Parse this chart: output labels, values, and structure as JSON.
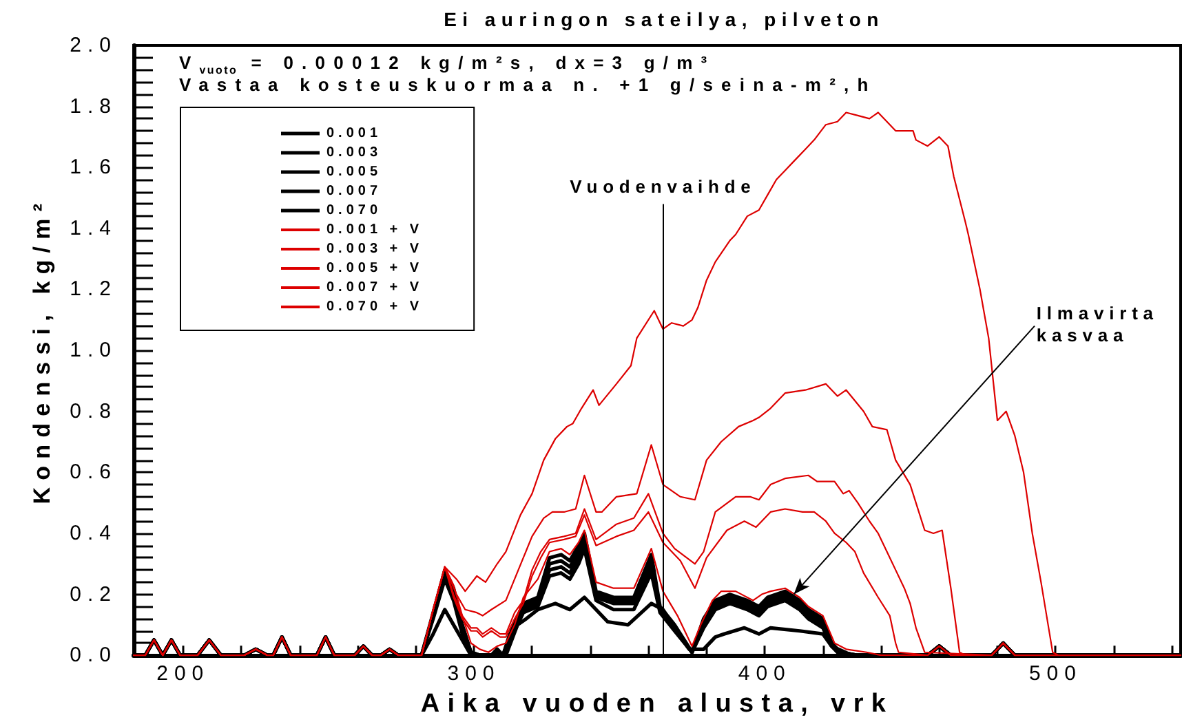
{
  "chart_data": {
    "type": "line",
    "title": "Ei auringon sateilya, pilveton",
    "xlabel": "Aika vuoden alusta, vrk",
    "ylabel": "Kondenssi, kg/m²",
    "annotations": [
      "V$_{vuoto}$ = 0.00012 kg/m²s, dx=3 g/m³",
      "Vastaa kosteuskuormaa n. +1 g/seina-m²,h",
      {
        "text": "Ilmavirta kasvaa",
        "x": 410,
        "y": 0.2
      }
    ],
    "ref_lines": [
      {
        "axis": "x",
        "value": 365,
        "label": "Vuodenvaihde"
      }
    ],
    "xlim": [
      183,
      543
    ],
    "ylim": [
      0,
      2
    ],
    "xticks": [
      200,
      {
        "value": 220,
        "label": null
      },
      {
        "value": 240,
        "label": null
      },
      {
        "value": 260,
        "label": null
      },
      {
        "value": 280,
        "label": null
      },
      300,
      {
        "value": 320,
        "label": null
      },
      {
        "value": 340,
        "label": null
      },
      {
        "value": 360,
        "label": null
      },
      {
        "value": 380,
        "label": null
      },
      400,
      {
        "value": 420,
        "label": null
      },
      {
        "value": 440,
        "label": null
      },
      {
        "value": 460,
        "label": null
      },
      {
        "value": 480,
        "label": null
      },
      500,
      {
        "value": 520,
        "label": null
      },
      {
        "value": 540,
        "label": null
      }
    ],
    "yticks": [
      {
        "value": 0,
        "label": "0.0"
      },
      {
        "value": 0.04,
        "label": null
      },
      {
        "value": 0.08,
        "label": null
      },
      {
        "value": 0.12,
        "label": null
      },
      {
        "value": 0.16,
        "label": null
      },
      0.2,
      {
        "value": 0.24,
        "label": null
      },
      {
        "value": 0.28,
        "label": null
      },
      {
        "value": 0.32,
        "label": null
      },
      {
        "value": 0.36,
        "label": null
      },
      0.4,
      {
        "value": 0.44,
        "label": null
      },
      {
        "value": 0.48,
        "label": null
      },
      {
        "value": 0.52,
        "label": null
      },
      {
        "value": 0.56,
        "label": null
      },
      0.6,
      {
        "value": 0.64,
        "label": null
      },
      {
        "value": 0.68,
        "label": null
      },
      {
        "value": 0.72,
        "label": null
      },
      {
        "value": 0.76,
        "label": null
      },
      0.8,
      {
        "value": 0.84,
        "label": null
      },
      {
        "value": 0.88,
        "label": null
      },
      {
        "value": 0.92,
        "label": null
      },
      {
        "value": 0.96,
        "label": null
      },
      {
        "value": 1,
        "label": "1.0"
      },
      {
        "value": 1.04,
        "label": null
      },
      {
        "value": 1.08,
        "label": null
      },
      {
        "value": 1.12,
        "label": null
      },
      {
        "value": 1.16,
        "label": null
      },
      1.2,
      {
        "value": 1.24,
        "label": null
      },
      {
        "value": 1.28,
        "label": null
      },
      {
        "value": 1.32,
        "label": null
      },
      {
        "value": 1.36,
        "label": null
      },
      1.4,
      {
        "value": 1.44,
        "label": null
      },
      {
        "value": 1.48,
        "label": null
      },
      {
        "value": 1.52,
        "label": null
      },
      {
        "value": 1.56,
        "label": null
      },
      1.6,
      {
        "value": 1.64,
        "label": null
      },
      {
        "value": 1.68,
        "label": null
      },
      {
        "value": 1.72,
        "label": null
      },
      {
        "value": 1.76,
        "label": null
      },
      1.8,
      {
        "value": 1.84,
        "label": null
      },
      {
        "value": 1.88,
        "label": null
      },
      {
        "value": 1.92,
        "label": null
      },
      {
        "value": 1.96,
        "label": null
      },
      {
        "value": 2,
        "label": "2.0"
      }
    ],
    "legend": "top left",
    "marker": "none",
    "line_style": "solid",
    "x": [
      183,
      187,
      190,
      193,
      196,
      199,
      205,
      209,
      213,
      221,
      225,
      229,
      231,
      234,
      237,
      246,
      249,
      252,
      259,
      262,
      265,
      268,
      271,
      274,
      282,
      286,
      290,
      293,
      296,
      299,
      302,
      306,
      308,
      310,
      312,
      317,
      322,
      326,
      330,
      333,
      336,
      338,
      342,
      348,
      355,
      361,
      364,
      369,
      375,
      379,
      383,
      388,
      394,
      398,
      401,
      407,
      412,
      415,
      420,
      423,
      426,
      432,
      456,
      460,
      464,
      478,
      482,
      486,
      543
    ],
    "series": [
      {
        "name": "0.001",
        "color": "#000000",
        "values": [
          0,
          0,
          0.05,
          0,
          0.05,
          0,
          0,
          0.05,
          0,
          0,
          0.02,
          0,
          0,
          0.06,
          0,
          0,
          0.06,
          0,
          0,
          0.03,
          0,
          0,
          0.02,
          0,
          0,
          0.14,
          0.28,
          0.22,
          0.1,
          0.01,
          0,
          0,
          0.02,
          0,
          0.06,
          0.17,
          0.19,
          0.32,
          0.33,
          0.31,
          0.36,
          0.4,
          0.21,
          0.19,
          0.19,
          0.33,
          0.16,
          0.1,
          0.01,
          0.12,
          0.18,
          0.2,
          0.18,
          0.16,
          0.19,
          0.21,
          0.18,
          0.15,
          0.12,
          0.04,
          0.01,
          0,
          0,
          0.03,
          0,
          0,
          0.04,
          0,
          0
        ]
      },
      {
        "name": "0.003",
        "color": "#000000",
        "values": [
          0,
          0,
          0.05,
          0,
          0.05,
          0,
          0,
          0.05,
          0,
          0,
          0.02,
          0,
          0,
          0.06,
          0,
          0,
          0.06,
          0,
          0,
          0.03,
          0,
          0,
          0.02,
          0,
          0,
          0.13,
          0.27,
          0.2,
          0.09,
          0.01,
          0,
          0,
          0.02,
          0,
          0.05,
          0.16,
          0.18,
          0.3,
          0.31,
          0.29,
          0.34,
          0.38,
          0.2,
          0.18,
          0.18,
          0.31,
          0.15,
          0.09,
          0.01,
          0.11,
          0.17,
          0.19,
          0.17,
          0.15,
          0.18,
          0.2,
          0.17,
          0.14,
          0.11,
          0.04,
          0.01,
          0,
          0,
          0.03,
          0,
          0,
          0.04,
          0,
          0
        ]
      },
      {
        "name": "0.005",
        "color": "#000000",
        "values": [
          0,
          0,
          0.05,
          0,
          0.05,
          0,
          0,
          0.05,
          0,
          0,
          0.02,
          0,
          0,
          0.06,
          0,
          0,
          0.06,
          0,
          0,
          0.03,
          0,
          0,
          0.02,
          0,
          0,
          0.13,
          0.26,
          0.19,
          0.08,
          0.01,
          0,
          0,
          0.01,
          0,
          0.05,
          0.15,
          0.17,
          0.28,
          0.29,
          0.27,
          0.32,
          0.37,
          0.19,
          0.17,
          0.17,
          0.29,
          0.15,
          0.09,
          0.01,
          0.1,
          0.16,
          0.18,
          0.16,
          0.14,
          0.17,
          0.19,
          0.16,
          0.13,
          0.1,
          0.03,
          0.01,
          0,
          0,
          0.03,
          0,
          0,
          0.04,
          0,
          0
        ]
      },
      {
        "name": "0.007",
        "color": "#000000",
        "values": [
          0,
          0,
          0.05,
          0,
          0.05,
          0,
          0,
          0.05,
          0,
          0,
          0.02,
          0,
          0,
          0.06,
          0,
          0,
          0.06,
          0,
          0,
          0.03,
          0,
          0,
          0.02,
          0,
          0,
          0.12,
          0.25,
          0.18,
          0.07,
          0.01,
          0,
          0,
          0.01,
          0,
          0.04,
          0.14,
          0.16,
          0.26,
          0.27,
          0.25,
          0.3,
          0.35,
          0.18,
          0.15,
          0.15,
          0.27,
          0.14,
          0.08,
          0.01,
          0.09,
          0.15,
          0.17,
          0.15,
          0.13,
          0.16,
          0.18,
          0.15,
          0.12,
          0.09,
          0.03,
          0,
          0,
          0,
          0.03,
          0,
          0,
          0.04,
          0,
          0
        ]
      },
      {
        "name": "0.070",
        "color": "#000000",
        "x": [
          183,
          187,
          190,
          193,
          196,
          199,
          205,
          209,
          213,
          221,
          225,
          229,
          231,
          234,
          237,
          246,
          249,
          252,
          259,
          262,
          265,
          268,
          271,
          274,
          282,
          286,
          290,
          293,
          296,
          299,
          306,
          311,
          315,
          318,
          322,
          328,
          333,
          338,
          342,
          346,
          353,
          361,
          365,
          369,
          374,
          379,
          383,
          386,
          393,
          398,
          402,
          412,
          420,
          423,
          430,
          456,
          460,
          464,
          478,
          482,
          486,
          543
        ],
        "values": [
          0,
          0,
          0.05,
          0,
          0.05,
          0,
          0,
          0.05,
          0,
          0,
          0.02,
          0,
          0,
          0.06,
          0,
          0,
          0.06,
          0,
          0,
          0.03,
          0,
          0,
          0.02,
          0,
          0,
          0.07,
          0.15,
          0.1,
          0.05,
          0,
          0,
          0,
          0.1,
          0.12,
          0.15,
          0.17,
          0.15,
          0.19,
          0.15,
          0.11,
          0.1,
          0.17,
          0.15,
          0.09,
          0.02,
          0.02,
          0.06,
          0.07,
          0.09,
          0.07,
          0.09,
          0.08,
          0.07,
          0.03,
          0,
          0,
          0.03,
          0,
          0,
          0.04,
          0,
          0
        ]
      },
      {
        "name": "0.001 + V",
        "color": "#dd0000",
        "x": [
          183,
          187,
          190,
          193,
          196,
          199,
          205,
          209,
          213,
          221,
          225,
          229,
          231,
          234,
          237,
          246,
          249,
          252,
          259,
          262,
          265,
          268,
          271,
          274,
          282,
          286,
          290,
          294,
          297,
          301,
          304,
          308,
          311,
          316,
          320,
          324,
          328,
          332,
          334,
          337,
          341,
          343,
          349,
          354,
          356,
          362,
          365,
          368,
          372,
          375,
          377,
          380,
          383,
          388,
          390,
          394,
          398,
          401,
          404,
          407,
          410,
          414,
          417,
          421,
          425,
          428,
          432,
          436,
          439,
          445,
          448,
          451,
          452,
          456,
          460,
          463,
          465,
          469,
          470,
          474,
          477,
          480,
          483,
          486,
          489,
          492,
          495,
          499,
          501,
          543
        ],
        "values": [
          0,
          0,
          0.05,
          0,
          0.05,
          0,
          0,
          0.05,
          0,
          0,
          0.02,
          0,
          0,
          0.06,
          0,
          0,
          0.06,
          0,
          0,
          0.03,
          0,
          0,
          0.02,
          0,
          0,
          0.15,
          0.29,
          0.25,
          0.21,
          0.26,
          0.24,
          0.3,
          0.34,
          0.46,
          0.53,
          0.64,
          0.71,
          0.75,
          0.76,
          0.81,
          0.87,
          0.82,
          0.89,
          0.95,
          1.04,
          1.13,
          1.07,
          1.09,
          1.08,
          1.1,
          1.14,
          1.23,
          1.29,
          1.36,
          1.38,
          1.44,
          1.46,
          1.51,
          1.56,
          1.59,
          1.62,
          1.66,
          1.69,
          1.74,
          1.75,
          1.78,
          1.77,
          1.76,
          1.78,
          1.72,
          1.72,
          1.72,
          1.69,
          1.67,
          1.7,
          1.67,
          1.57,
          1.42,
          1.38,
          1.2,
          1.04,
          0.77,
          0.8,
          0.72,
          0.6,
          0.4,
          0.24,
          0.01,
          0,
          0
        ]
      },
      {
        "name": "0.003 + V",
        "color": "#dd0000",
        "x": [
          183,
          187,
          190,
          193,
          196,
          199,
          205,
          209,
          213,
          221,
          225,
          229,
          231,
          234,
          237,
          246,
          249,
          252,
          259,
          262,
          265,
          268,
          271,
          274,
          282,
          286,
          290,
          294,
          297,
          301,
          303,
          306,
          311,
          314,
          317,
          320,
          324,
          327,
          331,
          335,
          338,
          342,
          344,
          349,
          356,
          361,
          365,
          371,
          376,
          380,
          385,
          391,
          396,
          398,
          402,
          407,
          414,
          421,
          425,
          428,
          434,
          437,
          442,
          445,
          450,
          455,
          458,
          461,
          464,
          467,
          469,
          478,
          482,
          486,
          543
        ],
        "values": [
          0,
          0,
          0.05,
          0,
          0.05,
          0,
          0,
          0.05,
          0,
          0,
          0.02,
          0,
          0,
          0.06,
          0,
          0,
          0.06,
          0,
          0,
          0.03,
          0,
          0,
          0.02,
          0,
          0,
          0.15,
          0.29,
          0.2,
          0.15,
          0.14,
          0.13,
          0.15,
          0.18,
          0.25,
          0.32,
          0.39,
          0.45,
          0.47,
          0.47,
          0.48,
          0.59,
          0.47,
          0.47,
          0.52,
          0.53,
          0.69,
          0.56,
          0.52,
          0.51,
          0.64,
          0.7,
          0.75,
          0.77,
          0.78,
          0.81,
          0.86,
          0.87,
          0.89,
          0.85,
          0.87,
          0.8,
          0.75,
          0.74,
          0.64,
          0.56,
          0.41,
          0.4,
          0.41,
          0.22,
          0.01,
          0,
          0,
          0.04,
          0,
          0
        ]
      },
      {
        "name": "0.005 + V",
        "color": "#dd0000",
        "x": [
          183,
          187,
          190,
          193,
          196,
          199,
          205,
          209,
          213,
          221,
          225,
          229,
          231,
          234,
          237,
          246,
          249,
          252,
          259,
          262,
          265,
          268,
          271,
          274,
          282,
          286,
          290,
          293,
          296,
          299,
          301,
          303,
          306,
          309,
          311,
          314,
          317,
          320,
          323,
          326,
          331,
          335,
          338,
          342,
          349,
          355,
          360,
          365,
          369,
          376,
          379,
          383,
          390,
          395,
          398,
          402,
          407,
          415,
          418,
          424,
          427,
          429,
          432,
          436,
          439,
          442,
          445,
          448,
          450,
          452,
          455,
          478,
          482,
          486,
          543
        ],
        "values": [
          0,
          0,
          0.05,
          0,
          0.05,
          0,
          0,
          0.05,
          0,
          0,
          0.02,
          0,
          0,
          0.06,
          0,
          0,
          0.06,
          0,
          0,
          0.03,
          0,
          0,
          0.02,
          0,
          0,
          0.15,
          0.29,
          0.2,
          0.13,
          0.09,
          0.09,
          0.07,
          0.09,
          0.07,
          0.07,
          0.14,
          0.18,
          0.28,
          0.34,
          0.38,
          0.39,
          0.4,
          0.48,
          0.38,
          0.43,
          0.45,
          0.53,
          0.4,
          0.35,
          0.3,
          0.34,
          0.47,
          0.52,
          0.52,
          0.51,
          0.56,
          0.58,
          0.59,
          0.57,
          0.57,
          0.53,
          0.54,
          0.5,
          0.44,
          0.4,
          0.34,
          0.28,
          0.22,
          0.17,
          0.09,
          0.01,
          0,
          0.04,
          0,
          0
        ]
      },
      {
        "name": "0.007 + V",
        "color": "#dd0000",
        "x": [
          183,
          187,
          190,
          193,
          196,
          199,
          205,
          209,
          213,
          221,
          225,
          229,
          231,
          234,
          237,
          246,
          249,
          252,
          259,
          262,
          265,
          268,
          271,
          274,
          282,
          286,
          290,
          293,
          296,
          299,
          301,
          303,
          306,
          309,
          311,
          314,
          317,
          320,
          323,
          326,
          331,
          335,
          338,
          342,
          349,
          355,
          360,
          365,
          371,
          376,
          380,
          387,
          393,
          397,
          402,
          407,
          413,
          417,
          421,
          424,
          428,
          431,
          434,
          439,
          443,
          445,
          446,
          456,
          460,
          464,
          478,
          482,
          486,
          543
        ],
        "values": [
          0,
          0,
          0.05,
          0,
          0.05,
          0,
          0,
          0.05,
          0,
          0,
          0.02,
          0,
          0,
          0.06,
          0,
          0,
          0.06,
          0,
          0,
          0.03,
          0,
          0,
          0.02,
          0,
          0,
          0.15,
          0.29,
          0.19,
          0.12,
          0.08,
          0.08,
          0.06,
          0.08,
          0.06,
          0.06,
          0.12,
          0.17,
          0.26,
          0.32,
          0.37,
          0.38,
          0.39,
          0.46,
          0.36,
          0.39,
          0.41,
          0.47,
          0.37,
          0.31,
          0.22,
          0.32,
          0.41,
          0.44,
          0.42,
          0.47,
          0.48,
          0.47,
          0.47,
          0.44,
          0.4,
          0.37,
          0.34,
          0.27,
          0.19,
          0.13,
          0.04,
          0.01,
          0,
          0.03,
          0,
          0,
          0.04,
          0,
          0
        ]
      },
      {
        "name": "0.070 + V",
        "color": "#dd0000",
        "x": [
          183,
          187,
          190,
          193,
          196,
          199,
          205,
          209,
          213,
          221,
          225,
          229,
          231,
          234,
          237,
          246,
          249,
          252,
          259,
          262,
          265,
          268,
          271,
          274,
          282,
          286,
          290,
          293,
          296,
          299,
          302,
          305,
          308,
          311,
          314,
          317,
          322,
          326,
          330,
          333,
          336,
          338,
          342,
          348,
          355,
          361,
          365,
          370,
          375,
          378,
          382,
          385,
          390,
          396,
          399,
          402,
          407,
          412,
          415,
          420,
          424,
          428,
          435,
          440,
          456,
          460,
          464,
          478,
          482,
          486,
          543
        ],
        "values": [
          0,
          0,
          0.05,
          0,
          0.05,
          0,
          0,
          0.05,
          0,
          0,
          0.02,
          0,
          0,
          0.06,
          0,
          0,
          0.06,
          0,
          0,
          0.03,
          0,
          0,
          0.02,
          0,
          0,
          0.15,
          0.29,
          0.23,
          0.13,
          0.04,
          0.02,
          0.01,
          0.03,
          0.04,
          0.1,
          0.19,
          0.25,
          0.34,
          0.35,
          0.33,
          0.37,
          0.41,
          0.24,
          0.22,
          0.22,
          0.35,
          0.21,
          0.13,
          0.03,
          0.1,
          0.18,
          0.21,
          0.21,
          0.18,
          0.2,
          0.21,
          0.22,
          0.19,
          0.16,
          0.13,
          0.04,
          0.02,
          0.01,
          0,
          0,
          0.03,
          0,
          0,
          0.04,
          0,
          0
        ]
      }
    ]
  }
}
